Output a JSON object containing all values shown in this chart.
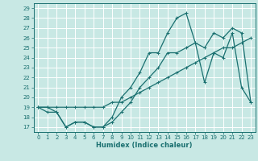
{
  "xlabel": "Humidex (Indice chaleur)",
  "xlim": [
    -0.5,
    23.5
  ],
  "ylim": [
    16.5,
    29.5
  ],
  "yticks": [
    17,
    18,
    19,
    20,
    21,
    22,
    23,
    24,
    25,
    26,
    27,
    28,
    29
  ],
  "xticks": [
    0,
    1,
    2,
    3,
    4,
    5,
    6,
    7,
    8,
    9,
    10,
    11,
    12,
    13,
    14,
    15,
    16,
    17,
    18,
    19,
    20,
    21,
    22,
    23
  ],
  "bg_color": "#c8e8e4",
  "grid_color": "#ffffff",
  "line_color": "#1a7070",
  "line1_y": [
    19,
    19,
    18.5,
    17,
    17.5,
    17.5,
    17,
    17,
    17.5,
    18.5,
    19.5,
    21,
    22,
    23,
    24.5,
    24.5,
    25,
    25.5,
    25,
    26.5,
    26,
    27,
    26.5,
    19.5
  ],
  "line2_y": [
    19,
    18.5,
    18.5,
    17,
    17.5,
    17.5,
    17,
    17,
    18,
    20,
    21,
    22.5,
    24.5,
    24.5,
    26.5,
    28,
    28.5,
    25.5,
    21.5,
    24.5,
    24,
    26.5,
    21,
    19.5
  ],
  "line3_y": [
    19,
    19,
    19,
    19,
    19,
    19,
    19,
    19,
    19.5,
    19.5,
    20,
    20.5,
    21,
    21.5,
    22,
    22.5,
    23,
    23.5,
    24,
    24.5,
    25,
    25,
    25.5,
    26
  ],
  "markersize": 2.0,
  "linewidth": 0.9,
  "tick_fontsize": 5.0,
  "label_fontsize": 6.0
}
